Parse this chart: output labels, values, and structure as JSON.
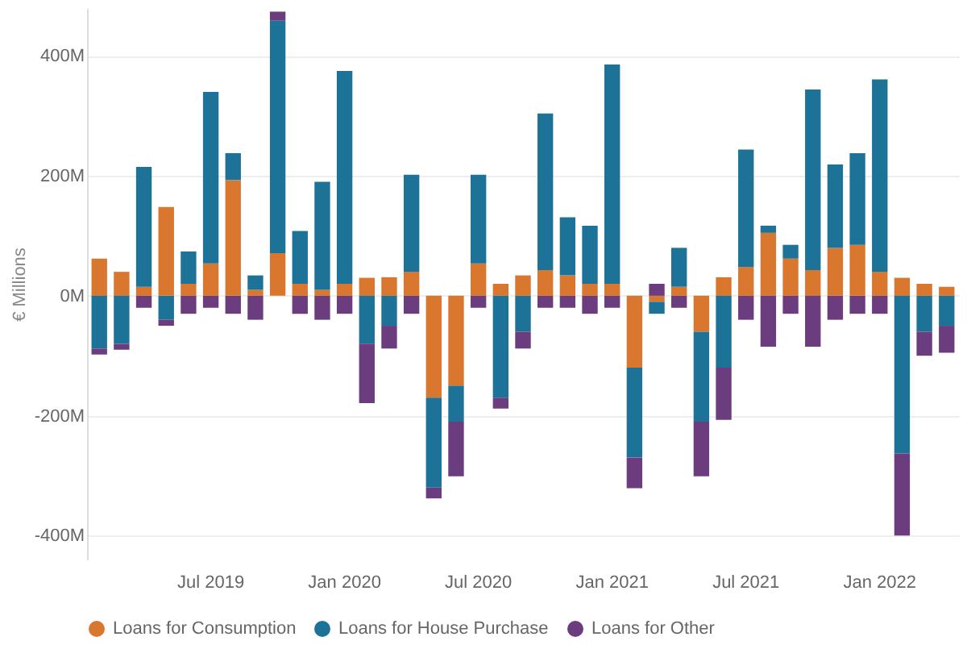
{
  "chart_data": {
    "type": "bar",
    "stacked": true,
    "ylabel": "€ Millions",
    "categories": [
      null,
      null,
      null,
      null,
      null,
      "Jul 2019",
      null,
      null,
      null,
      null,
      null,
      "Jan 2020",
      null,
      null,
      null,
      null,
      null,
      "Jul 2020",
      null,
      null,
      null,
      null,
      null,
      "Jan 2021",
      null,
      null,
      null,
      null,
      null,
      "Jul 2021",
      null,
      null,
      null,
      null,
      null,
      "Jan 2022",
      null,
      null,
      null
    ],
    "series": [
      {
        "name": "Loans for Consumption",
        "color": "#d9772f",
        "values": [
          62,
          40,
          15,
          148,
          20,
          54,
          193,
          10,
          71,
          20,
          10,
          20,
          30,
          31,
          40,
          -170,
          -150,
          54,
          20,
          34,
          43,
          34,
          20,
          20,
          -120,
          -10,
          15,
          -60,
          31,
          48,
          105,
          62,
          43,
          80,
          85,
          40,
          30,
          20,
          15
        ]
      },
      {
        "name": "Loans for House Purchase",
        "color": "#1d7298",
        "values": [
          -88,
          -80,
          200,
          -40,
          54,
          286,
          45,
          24,
          388,
          88,
          180,
          355,
          -80,
          -50,
          162,
          -150,
          -60,
          148,
          -170,
          -60,
          261,
          97,
          97,
          366,
          -150,
          -20,
          65,
          -150,
          -120,
          196,
          12,
          23,
          301,
          139,
          153,
          321,
          -263,
          -60,
          -50
        ]
      },
      {
        "name": "Loans for Other",
        "color": "#6b3d7e",
        "values": [
          -10,
          -10,
          -20,
          -10,
          -30,
          -20,
          -30,
          -40,
          15,
          -30,
          -40,
          -30,
          -99,
          -38,
          -30,
          -18,
          -91,
          -20,
          -18,
          -28,
          -20,
          -20,
          -30,
          -20,
          -51,
          20,
          -20,
          -91,
          -87,
          -40,
          -85,
          -30,
          -85,
          -40,
          -30,
          -30,
          -137,
          -40,
          -45
        ]
      }
    ],
    "ylim": [
      -440,
      480
    ],
    "yticks": [
      {
        "value": -400,
        "label": "-400M"
      },
      {
        "value": -200,
        "label": "-200M"
      },
      {
        "value": 0,
        "label": "0M"
      },
      {
        "value": 200,
        "label": "200M"
      },
      {
        "value": 400,
        "label": "400M"
      }
    ],
    "grid": "y",
    "legend": "bottom"
  }
}
